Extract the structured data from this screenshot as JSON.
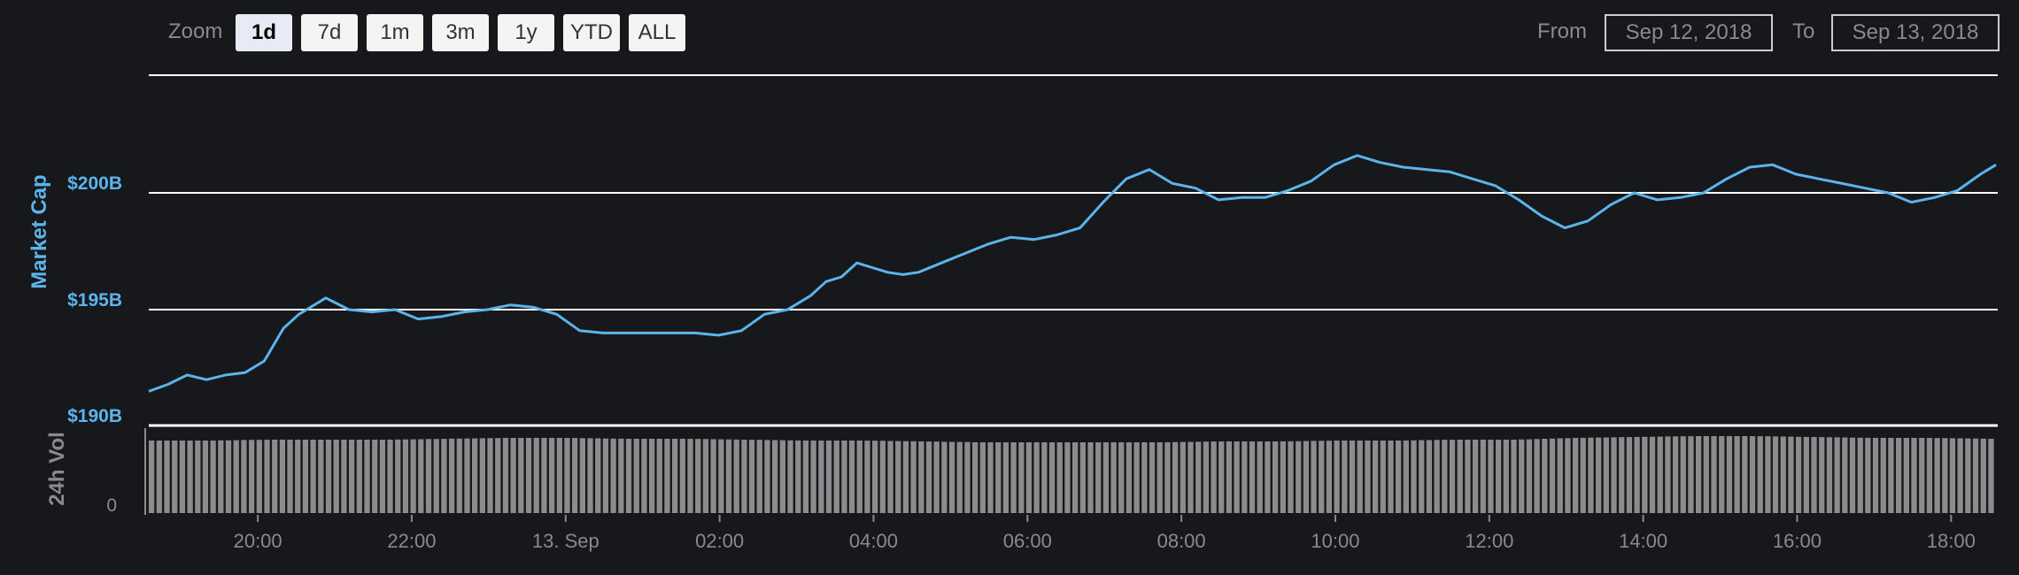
{
  "toolbar": {
    "zoom_label": "Zoom",
    "zoom_buttons": [
      "1d",
      "7d",
      "1m",
      "3m",
      "1y",
      "YTD",
      "ALL"
    ],
    "active_zoom": "1d",
    "from_label": "From",
    "from_value": "Sep 12, 2018",
    "to_label": "To",
    "to_value": "Sep 13, 2018"
  },
  "colors": {
    "background": "#17181c",
    "line": "#5bb4ec",
    "axis_label": "#5bb4ec",
    "volume_bar": "#8c8c8c",
    "gridline": "#ffffff",
    "tick_text": "#8a8a8a"
  },
  "chart_data": {
    "type": "line",
    "title": "",
    "xlabel": "",
    "ylabel": "Market Cap",
    "y_tick_labels": [
      "$190B",
      "$195B",
      "$200B"
    ],
    "ylim": [
      190,
      205
    ],
    "y_unit": "billion USD",
    "x_tick_labels": [
      "20:00",
      "22:00",
      "13. Sep",
      "02:00",
      "04:00",
      "06:00",
      "08:00",
      "10:00",
      "12:00",
      "14:00",
      "16:00",
      "18:00"
    ],
    "x_unit": "hours since Sep 12 18:35",
    "series": [
      {
        "name": "",
        "x": [
          0,
          0.25,
          0.5,
          0.75,
          1.0,
          1.25,
          1.5,
          1.75,
          1.95,
          2.1,
          2.3,
          2.6,
          2.9,
          3.2,
          3.5,
          3.8,
          4.1,
          4.4,
          4.7,
          5.0,
          5.3,
          5.6,
          5.9,
          6.2,
          6.5,
          6.8,
          7.1,
          7.4,
          7.7,
          8.0,
          8.3,
          8.6,
          8.8,
          9.0,
          9.2,
          9.4,
          9.6,
          9.8,
          10.0,
          10.3,
          10.6,
          10.9,
          11.2,
          11.5,
          11.8,
          12.1,
          12.4,
          12.7,
          13.0,
          13.3,
          13.6,
          13.9,
          14.2,
          14.5,
          14.8,
          15.1,
          15.4,
          15.7,
          16.0,
          16.3,
          16.6,
          16.9,
          17.2,
          17.5,
          17.8,
          18.1,
          18.4,
          18.7,
          19.0,
          19.3,
          19.6,
          19.9,
          20.2,
          20.5,
          20.8,
          21.1,
          21.4,
          21.7,
          22.0,
          22.3,
          22.6,
          22.9,
          23.2,
          23.5,
          23.8,
          24.0
        ],
        "values": [
          191.5,
          191.8,
          192.2,
          192.0,
          192.2,
          192.3,
          192.8,
          194.2,
          194.8,
          195.1,
          195.5,
          195.0,
          194.9,
          195.0,
          194.6,
          194.7,
          194.9,
          195.0,
          195.2,
          195.1,
          194.8,
          194.1,
          194.0,
          194.0,
          194.0,
          194.0,
          194.0,
          193.9,
          194.1,
          194.8,
          195.0,
          195.6,
          196.2,
          196.4,
          197.0,
          196.8,
          196.6,
          196.5,
          196.6,
          197.0,
          197.4,
          197.8,
          198.1,
          198.0,
          198.2,
          198.5,
          199.6,
          200.6,
          201.0,
          200.4,
          200.2,
          199.7,
          199.8,
          199.8,
          200.1,
          200.5,
          201.2,
          201.6,
          201.3,
          201.1,
          201.0,
          200.9,
          200.6,
          200.3,
          199.7,
          199.0,
          198.5,
          198.8,
          199.5,
          200.0,
          199.7,
          199.8,
          200.0,
          200.6,
          201.1,
          201.2,
          200.8,
          200.6,
          200.4,
          200.2,
          200.0,
          199.6,
          199.8,
          200.1,
          200.8,
          201.2
        ]
      },
      {
        "name": "24h Vol",
        "unit": "relative",
        "values": [
          0.82,
          0.82,
          0.83,
          0.83,
          0.83,
          0.84,
          0.85,
          0.85,
          0.84,
          0.84,
          0.83,
          0.82,
          0.82,
          0.81,
          0.8,
          0.8,
          0.8,
          0.8,
          0.81,
          0.81,
          0.82,
          0.82,
          0.83,
          0.83,
          0.85,
          0.86,
          0.87,
          0.87,
          0.86,
          0.85,
          0.85,
          0.84
        ]
      }
    ],
    "volume_label": "24h Vol",
    "volume_tick_labels": [
      "0"
    ],
    "grid": true,
    "legend": "none"
  }
}
